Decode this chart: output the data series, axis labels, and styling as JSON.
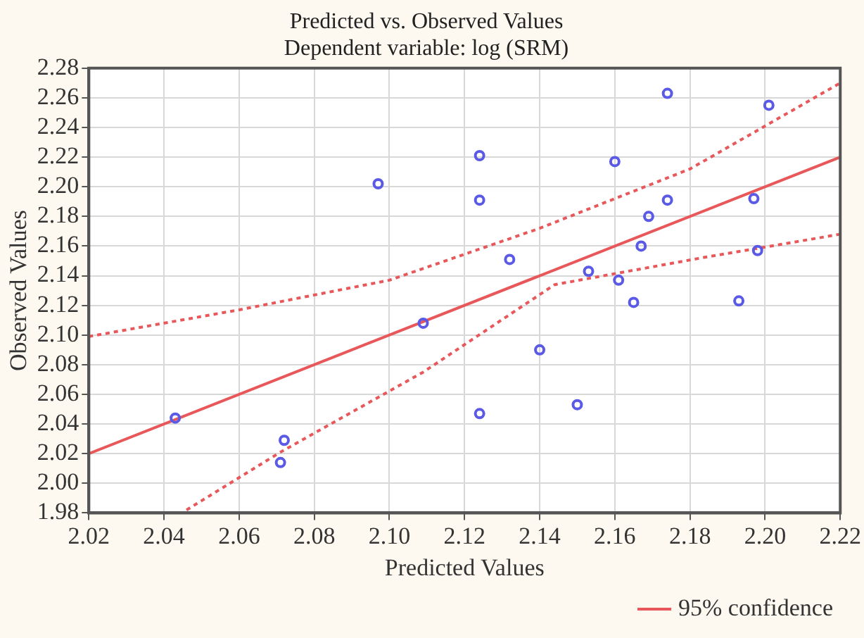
{
  "chart_data": {
    "type": "scatter",
    "title": "Predicted vs. Observed Values",
    "subtitle": "Dependent variable: log (SRM)",
    "xlabel": "Predicted Values",
    "ylabel": "Observed Values",
    "xlim": [
      2.02,
      2.22
    ],
    "xticks": [
      2.02,
      2.04,
      2.06,
      2.08,
      {
        "value": 2.1,
        "label": "2.10"
      },
      2.12,
      2.14,
      2.16,
      2.18,
      {
        "value": 2.2,
        "label": "2.20"
      },
      2.22
    ],
    "ylim": [
      1.98,
      2.28
    ],
    "yticks": [
      1.98,
      {
        "value": 2.0,
        "label": "2.00"
      },
      2.02,
      2.04,
      2.06,
      2.08,
      {
        "value": 2.1,
        "label": "2.10"
      },
      2.12,
      2.14,
      2.16,
      2.18,
      {
        "value": 2.2,
        "label": "2.20"
      },
      2.22,
      2.24,
      2.26,
      2.28
    ],
    "grid": true,
    "legend": "bottom right",
    "series": [
      {
        "type": "scatter",
        "marker": "circle",
        "color": "#5a5ae6",
        "x": [
          2.043,
          2.072,
          2.071,
          2.109,
          2.097,
          2.124,
          2.124,
          2.132,
          2.153,
          2.161,
          2.16,
          2.174,
          2.174,
          2.169,
          2.167,
          2.165,
          2.193,
          2.197,
          2.198,
          2.201,
          2.124,
          2.14,
          2.15
        ],
        "values": [
          2.044,
          2.029,
          2.014,
          2.108,
          2.202,
          2.221,
          2.191,
          2.151,
          2.143,
          2.137,
          2.217,
          2.263,
          2.191,
          2.18,
          2.16,
          2.122,
          2.123,
          2.192,
          2.157,
          2.255,
          2.047,
          2.09,
          2.053
        ]
      },
      {
        "type": "line",
        "line_style": "solid",
        "marker": "none",
        "color": "#e8585a",
        "x": [
          2.02,
          2.22
        ],
        "values": [
          2.02,
          2.22
        ]
      },
      {
        "type": "line",
        "name": "95% confidence",
        "line_style": "dotted",
        "marker": "none",
        "color": "#e8585a",
        "x": [
          2.02,
          2.06,
          2.1,
          2.14,
          2.18,
          2.22
        ],
        "values": [
          2.099,
          2.117,
          2.137,
          2.172,
          2.212,
          2.27
        ]
      },
      {
        "type": "line",
        "line_style": "dotted",
        "marker": "none",
        "color": "#e8585a",
        "x": [
          2.046,
          2.071,
          2.109,
          2.144,
          2.183,
          2.22
        ],
        "values": [
          1.982,
          2.021,
          2.075,
          2.134,
          2.152,
          2.168
        ]
      }
    ]
  }
}
